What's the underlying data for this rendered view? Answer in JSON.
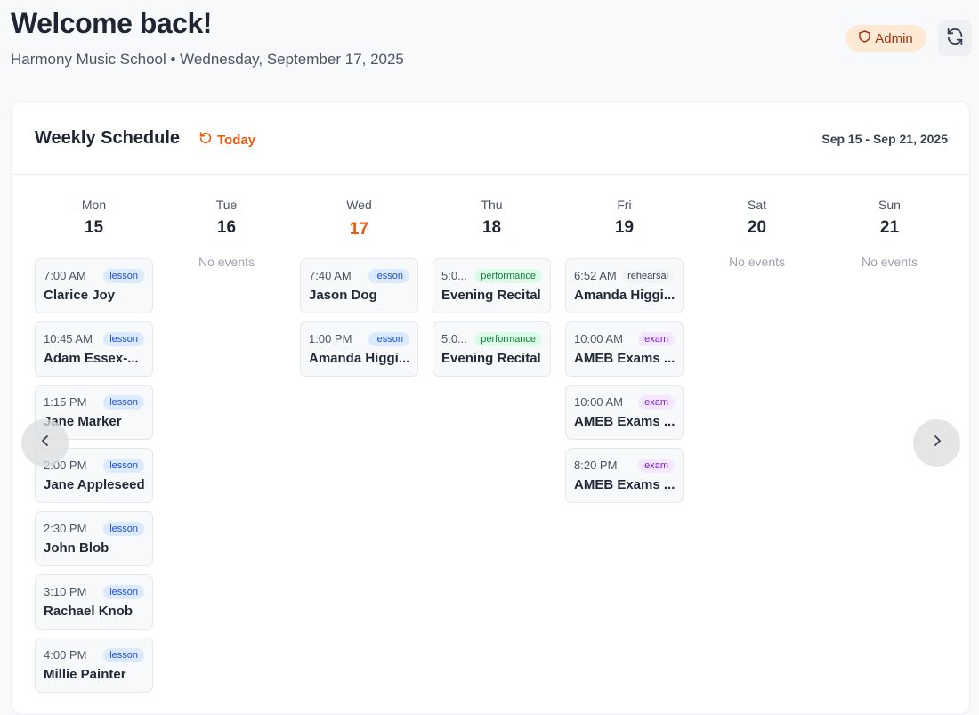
{
  "header": {
    "title": "Welcome back!",
    "subtitle": "Harmony Music School • Wednesday, September 17, 2025",
    "role_badge": "Admin"
  },
  "schedule": {
    "title": "Weekly Schedule",
    "today_label": "Today",
    "range": "Sep 15 - Sep 21, 2025",
    "empty_label": "No events",
    "days": [
      {
        "name": "Mon",
        "num": "15",
        "today": false,
        "events": [
          {
            "time": "7:00 AM",
            "type": "lesson",
            "name": "Clarice Joy"
          },
          {
            "time": "10:45 AM",
            "type": "lesson",
            "name": "Adam Essex-..."
          },
          {
            "time": "1:15 PM",
            "type": "lesson",
            "name": "Jane Marker"
          },
          {
            "time": "2:00 PM",
            "type": "lesson",
            "name": "Jane Appleseed"
          },
          {
            "time": "2:30 PM",
            "type": "lesson",
            "name": "John Blob"
          },
          {
            "time": "3:10 PM",
            "type": "lesson",
            "name": "Rachael Knob"
          },
          {
            "time": "4:00 PM",
            "type": "lesson",
            "name": "Millie Painter"
          }
        ]
      },
      {
        "name": "Tue",
        "num": "16",
        "today": false,
        "events": []
      },
      {
        "name": "Wed",
        "num": "17",
        "today": true,
        "events": [
          {
            "time": "7:40 AM",
            "type": "lesson",
            "name": "Jason Dog"
          },
          {
            "time": "1:00 PM",
            "type": "lesson",
            "name": "Amanda Higgi..."
          }
        ]
      },
      {
        "name": "Thu",
        "num": "18",
        "today": false,
        "events": [
          {
            "time": "5:0...",
            "type": "performance",
            "name": "Evening Recital"
          },
          {
            "time": "5:0...",
            "type": "performance",
            "name": "Evening Recital"
          }
        ]
      },
      {
        "name": "Fri",
        "num": "19",
        "today": false,
        "events": [
          {
            "time": "6:52 AM",
            "type": "rehearsal",
            "name": "Amanda Higgi..."
          },
          {
            "time": "10:00 AM",
            "type": "exam",
            "name": "AMEB Exams ..."
          },
          {
            "time": "10:00 AM",
            "type": "exam",
            "name": "AMEB Exams ..."
          },
          {
            "time": "8:20 PM",
            "type": "exam",
            "name": "AMEB Exams ..."
          }
        ]
      },
      {
        "name": "Sat",
        "num": "20",
        "today": false,
        "events": []
      },
      {
        "name": "Sun",
        "num": "21",
        "today": false,
        "events": []
      }
    ]
  },
  "colors": {
    "accent": "#ea580c",
    "lesson": "#dbeafe",
    "performance": "#dcfce7",
    "rehearsal": "#f3f4f6",
    "exam": "#f3e8ff"
  }
}
